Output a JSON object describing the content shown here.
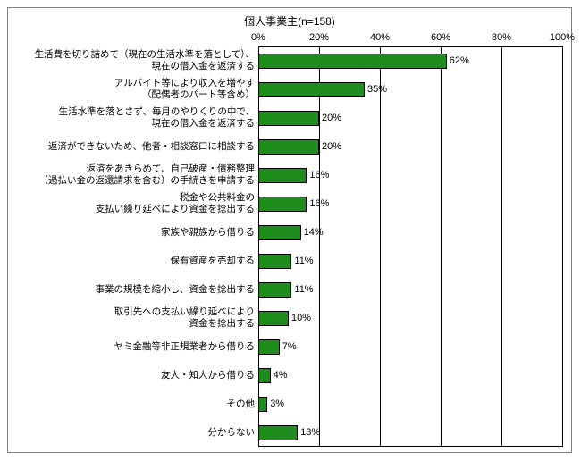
{
  "chart": {
    "title": "個人事業主(n=158)",
    "title_fontsize": 12,
    "type": "bar",
    "orientation": "horizontal",
    "xmin": 0,
    "xmax": 100,
    "xtick_step": 20,
    "xtick_suffix": "%",
    "bar_color": "#1e8d1e",
    "bar_border_color": "#000000",
    "grid_color": "#000000",
    "background_color": "#ffffff",
    "border_color": "#808080",
    "label_fontsize": 10.5,
    "value_fontsize": 11,
    "categories": [
      "生活費を切り詰めて（現在の生活水準を落として）、\n現在の借入金を返済する",
      "アルバイト等により収入を増やす\n（配偶者のパート等含め）",
      "生活水準を落とさず、毎月のやりくりの中で、\n現在の借入金を返済する",
      "返済ができないため、他者・相談窓口に相談する",
      "返済をあきらめて、自己破産・債務整理\n（過払い金の返還請求を含む）の手続きを申請する",
      "税金や公共料金の\n支払い繰り延べにより資金を捻出する",
      "家族や親族から借りる",
      "保有資産を売却する",
      "事業の規模を縮小し、資金を捻出する",
      "取引先への支払い繰り延べにより\n資金を捻出する",
      "ヤミ金融等非正規業者から借りる",
      "友人・知人から借りる",
      "その他",
      "分からない"
    ],
    "values": [
      62,
      35,
      20,
      20,
      16,
      16,
      14,
      11,
      11,
      10,
      7,
      4,
      3,
      13
    ]
  }
}
